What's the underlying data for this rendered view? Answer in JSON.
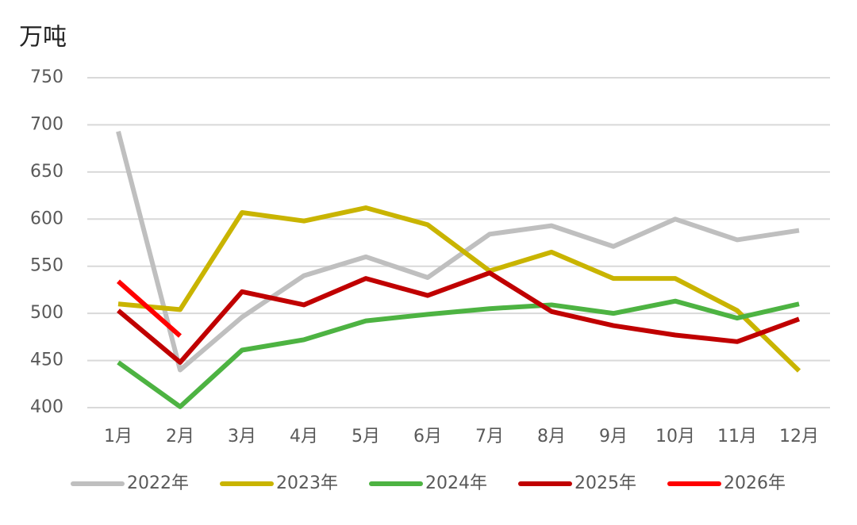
{
  "chart_data": {
    "type": "line",
    "y_label": "万吨",
    "categories": [
      "1月",
      "2月",
      "3月",
      "4月",
      "5月",
      "6月",
      "7月",
      "8月",
      "9月",
      "10月",
      "11月",
      "12月"
    ],
    "series": [
      {
        "name": "2022年",
        "color": "#bfbfbf",
        "values": [
          693,
          440,
          496,
          540,
          560,
          538,
          584,
          593,
          571,
          600,
          578,
          588
        ]
      },
      {
        "name": "2023年",
        "color": "#c9b400",
        "values": [
          510,
          504,
          607,
          598,
          612,
          594,
          545,
          565,
          537,
          537,
          503,
          439
        ]
      },
      {
        "name": "2024年",
        "color": "#4db342",
        "values": [
          448,
          401,
          461,
          472,
          492,
          499,
          505,
          509,
          500,
          513,
          495,
          510
        ]
      },
      {
        "name": "2025年",
        "color": "#c00000",
        "values": [
          503,
          448,
          523,
          509,
          537,
          519,
          543,
          502,
          487,
          477,
          470,
          494
        ]
      },
      {
        "name": "2026年",
        "color": "#ff0000",
        "values": [
          534,
          476,
          null,
          null,
          null,
          null,
          null,
          null,
          null,
          null,
          null,
          null
        ]
      }
    ],
    "ylim": [
      400,
      750
    ],
    "yticks": [
      400,
      450,
      500,
      550,
      600,
      650,
      700,
      750
    ],
    "grid": true,
    "legend": "bottom"
  }
}
